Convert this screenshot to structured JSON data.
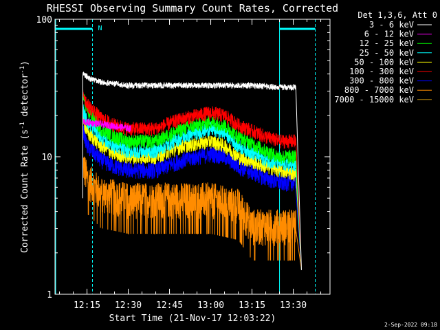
{
  "chart_data": {
    "type": "line",
    "title": "RHESSI Observing Summary Count Rates, Corrected",
    "xlabel": "Start Time (21-Nov-17 12:03:22)",
    "ylabel_main": "Corrected Count Rate (s",
    "ylabel_sup1": "-1",
    "ylabel_mid": " detector",
    "ylabel_sup2": "-1",
    "ylabel_end": ")",
    "yscale": "log",
    "ylim": [
      1,
      100
    ],
    "xlim": [
      "12:03:22",
      "13:43:22"
    ],
    "x_ticks": [
      "12:15",
      "12:30",
      "12:45",
      "13:00",
      "13:15",
      "13:30"
    ],
    "y_ticks": [
      "1",
      "10",
      "100"
    ],
    "legend_title": "Det 1,3,6, Att 0",
    "legend_position": "right",
    "flag_label": "N",
    "flag_color": "#00ffff",
    "timestamp": "2-Sep-2022 09:18",
    "data_interval": [
      "12:13:30",
      "13:33:00"
    ],
    "flag_intervals": [
      [
        "12:03:22",
        "12:17:00"
      ],
      [
        "13:25:00",
        "13:38:00"
      ]
    ],
    "night_boundaries": [
      "12:17:00",
      "13:25:00",
      "13:38:00"
    ],
    "series": [
      {
        "name": "3 - 6 keV",
        "color": "#000000",
        "times": [
          "12:13:30",
          "12:16:00",
          "12:20:00",
          "12:25:00",
          "12:30:00",
          "12:45:00",
          "13:00:00",
          "13:15:00",
          "13:25:00",
          "13:31:00"
        ],
        "values": [
          40,
          37,
          35,
          34,
          33,
          33,
          33,
          33,
          32,
          32
        ]
      },
      {
        "name": "6 - 12 keV",
        "color": "#ff00ff",
        "times": [
          "12:13:30",
          "12:31:00"
        ],
        "values": [
          18,
          16
        ]
      },
      {
        "name": "12 - 25 keV",
        "color": "#00ff00",
        "times": [
          "12:13:30",
          "12:15:00",
          "12:20:00",
          "12:25:00",
          "12:30:00",
          "12:40:00",
          "12:50:00",
          "13:00:00",
          "13:05:00",
          "13:10:00",
          "13:20:00",
          "13:25:00",
          "13:31:00"
        ],
        "values": [
          28,
          22,
          16,
          14,
          13,
          13,
          16,
          18,
          17,
          14,
          11,
          10,
          10
        ]
      },
      {
        "name": "25 - 50 keV",
        "color": "#00ffff",
        "times": [
          "12:13:30",
          "12:15:00",
          "12:20:00",
          "12:25:00",
          "12:30:00",
          "12:40:00",
          "12:50:00",
          "13:00:00",
          "13:05:00",
          "13:10:00",
          "13:20:00",
          "13:25:00",
          "13:31:00"
        ],
        "values": [
          22,
          18,
          14,
          12,
          11,
          11,
          14,
          16,
          15,
          12,
          9.5,
          9,
          8.5
        ]
      },
      {
        "name": "50 - 100 keV",
        "color": "#ffff00",
        "times": [
          "12:13:30",
          "12:15:00",
          "12:20:00",
          "12:25:00",
          "12:30:00",
          "12:40:00",
          "12:50:00",
          "13:00:00",
          "13:05:00",
          "13:10:00",
          "13:20:00",
          "13:25:00",
          "13:31:00"
        ],
        "values": [
          19,
          15,
          12,
          10.5,
          10,
          10,
          12,
          13,
          12,
          10,
          8.5,
          8,
          7.5
        ]
      },
      {
        "name": "100 - 300 keV",
        "color": "#ff0000",
        "times": [
          "12:13:30",
          "12:15:00",
          "12:20:00",
          "12:25:00",
          "12:30:00",
          "12:40:00",
          "12:50:00",
          "13:00:00",
          "13:05:00",
          "13:10:00",
          "13:20:00",
          "13:25:00",
          "13:31:00"
        ],
        "values": [
          30,
          24,
          19,
          17,
          16,
          16,
          19,
          21,
          20,
          17,
          14,
          13,
          13
        ]
      },
      {
        "name": "300 - 800 keV",
        "color": "#0000ff",
        "times": [
          "12:13:30",
          "12:15:00",
          "12:20:00",
          "12:25:00",
          "12:30:00",
          "12:40:00",
          "12:50:00",
          "13:00:00",
          "13:05:00",
          "13:10:00",
          "13:20:00",
          "13:25:00",
          "13:31:00"
        ],
        "values": [
          16,
          12,
          9.5,
          8.5,
          8,
          8,
          9.5,
          10.5,
          10,
          8.5,
          7,
          6.5,
          6.5
        ]
      },
      {
        "name": "800 - 7000 keV",
        "color": "#ff8c00",
        "times": [
          "12:13:30",
          "12:15:00",
          "12:20:00",
          "12:30:00",
          "12:45:00",
          "13:00:00",
          "13:10:00",
          "13:15:00",
          "13:31:00"
        ],
        "values": [
          9,
          7,
          5.5,
          5,
          5,
          5,
          4.5,
          3.2,
          3.2
        ]
      },
      {
        "name": "7000 - 15000 keV",
        "color": "#b8860b",
        "times": [],
        "values": []
      }
    ]
  }
}
